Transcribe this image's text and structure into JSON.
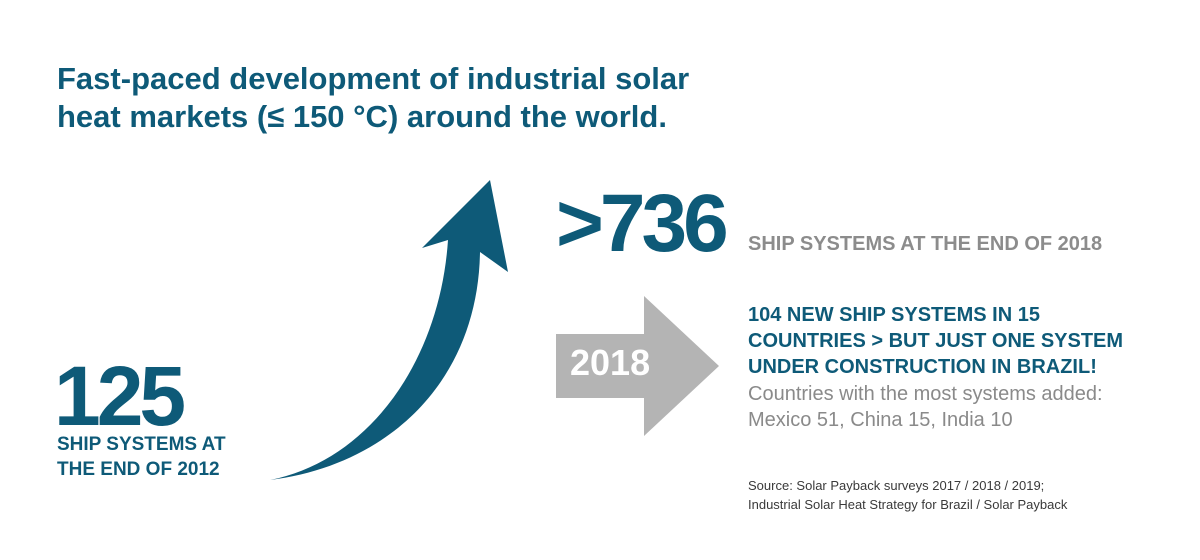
{
  "headline": {
    "line1": "Fast-paced development of industrial solar",
    "line2": "heat markets (≤ 150 °C) around the world."
  },
  "start": {
    "value": "125",
    "label_line1": "SHIP SYSTEMS AT",
    "label_line2": "THE END OF 2012"
  },
  "end": {
    "value": ">736",
    "label": "SHIP SYSTEMS AT THE END OF 2018"
  },
  "year_arrow": {
    "year": "2018"
  },
  "highlight": {
    "line1": "104 NEW SHIP SYSTEMS IN 15",
    "line2": "COUNTRIES > BUT JUST ONE SYSTEM",
    "line3": "UNDER CONSTRUCTION IN BRAZIL!"
  },
  "subtext": {
    "line1": "Countries with the most systems added:",
    "line2": "Mexico 51, China 15, India 10"
  },
  "source": {
    "line1": "Source: Solar Payback surveys 2017 / 2018 / 2019;",
    "line2": "Industrial Solar Heat Strategy for Brazil / Solar Payback"
  },
  "colors": {
    "primary": "#0e5a78",
    "grey_arrow": "#b4b4b4",
    "grey_text": "#8a8a8a"
  },
  "icons": {
    "growth": "curved-growth-arrow-icon",
    "year": "right-arrow-icon"
  }
}
